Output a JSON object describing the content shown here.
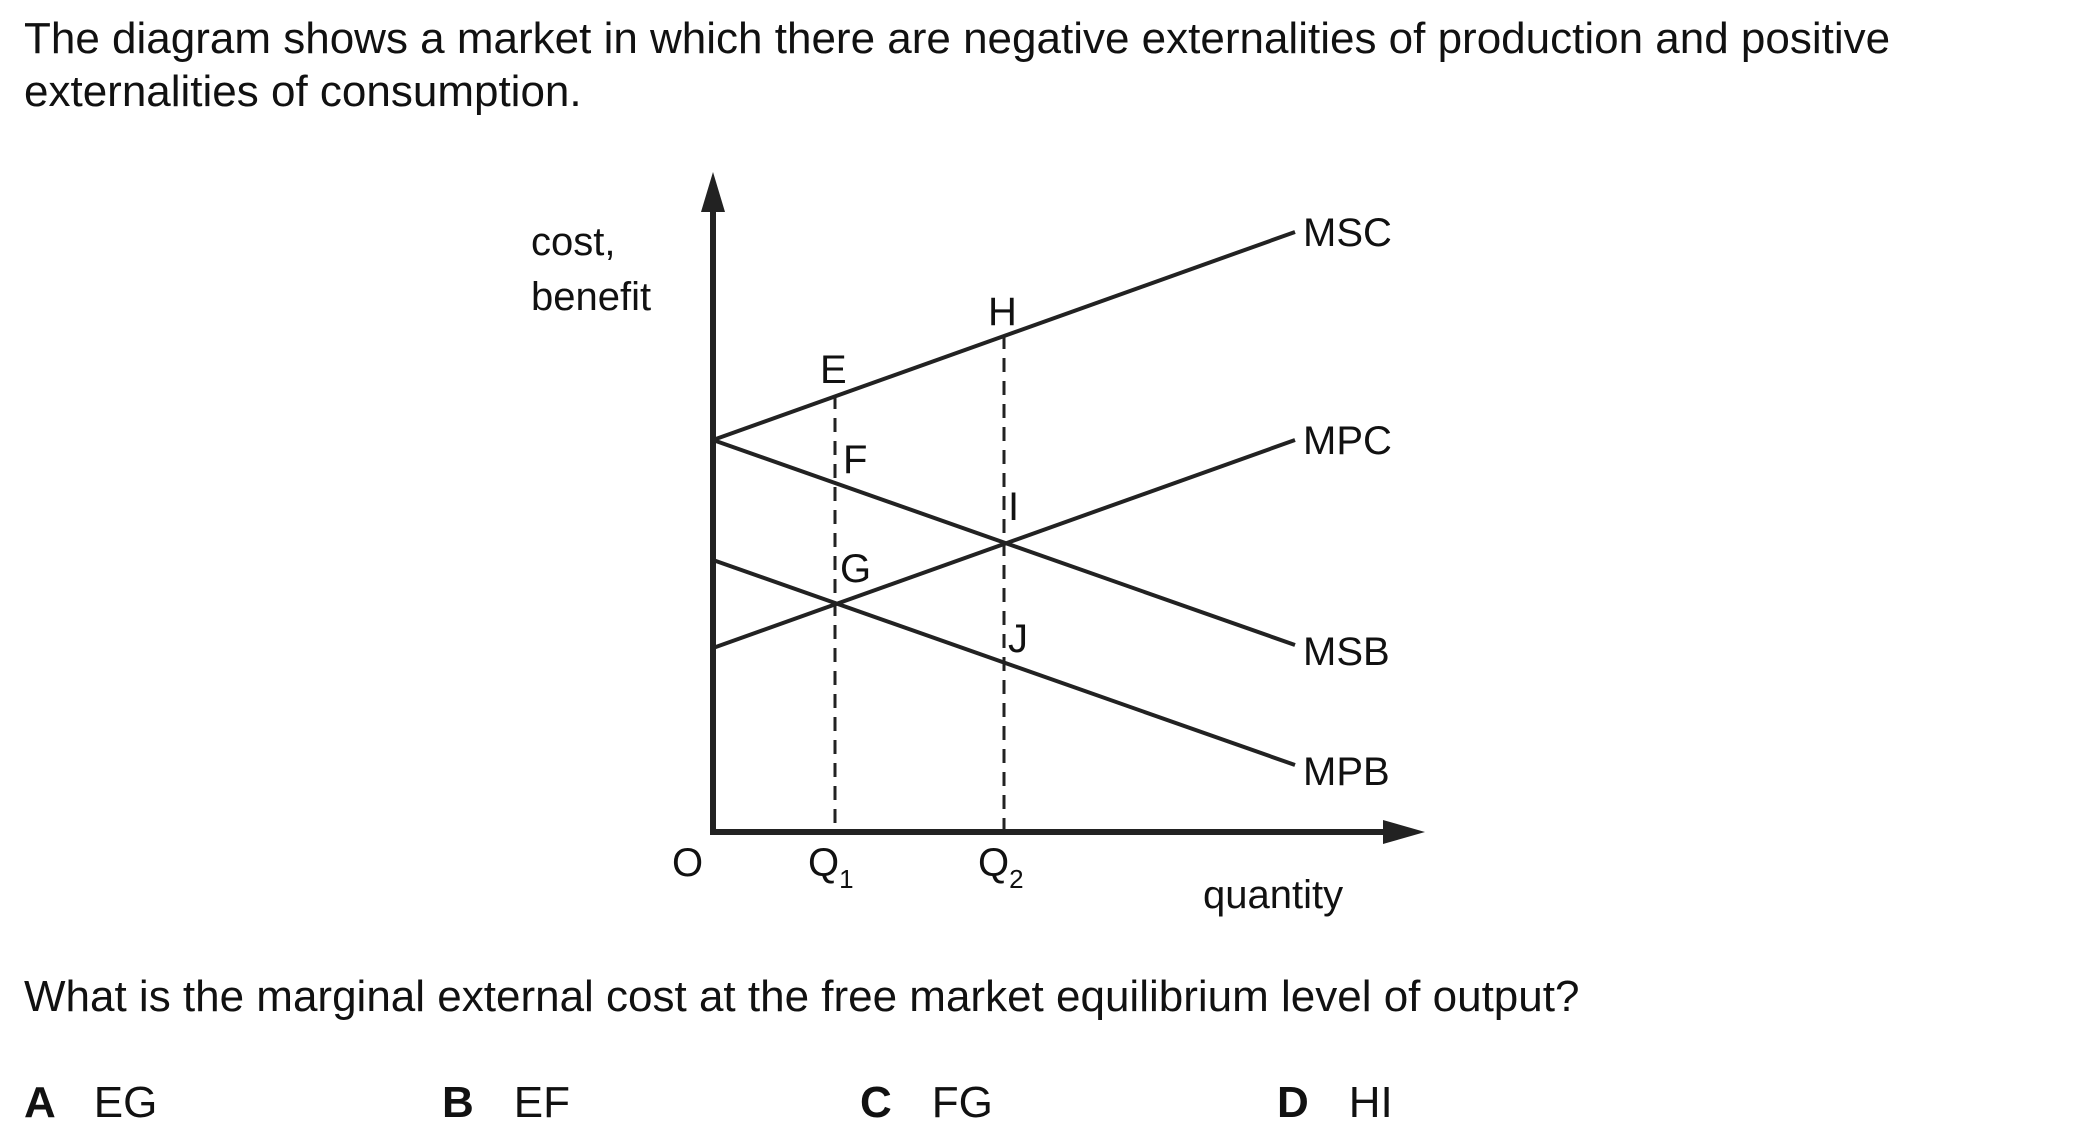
{
  "intro_text": "The diagram shows a market in which there are negative externalities of production and positive externalities of consumption.",
  "diagram": {
    "y_axis_label_line1": "cost,",
    "y_axis_label_line2": "benefit",
    "x_axis_label": "quantity",
    "origin_label": "O",
    "q1_label": "Q",
    "q1_sub": "1",
    "q2_label": "Q",
    "q2_sub": "2",
    "curves": {
      "msc": "MSC",
      "mpc": "MPC",
      "msb": "MSB",
      "mpb": "MPB"
    },
    "points": {
      "e": "E",
      "f": "F",
      "g": "G",
      "h": "H",
      "i": "I",
      "j": "J"
    }
  },
  "question": "What is the marginal external cost at the free market equilibrium level of output?",
  "options": [
    {
      "letter": "A",
      "text": "EG"
    },
    {
      "letter": "B",
      "text": "EF"
    },
    {
      "letter": "C",
      "text": "FG"
    },
    {
      "letter": "D",
      "text": "HI"
    }
  ]
}
